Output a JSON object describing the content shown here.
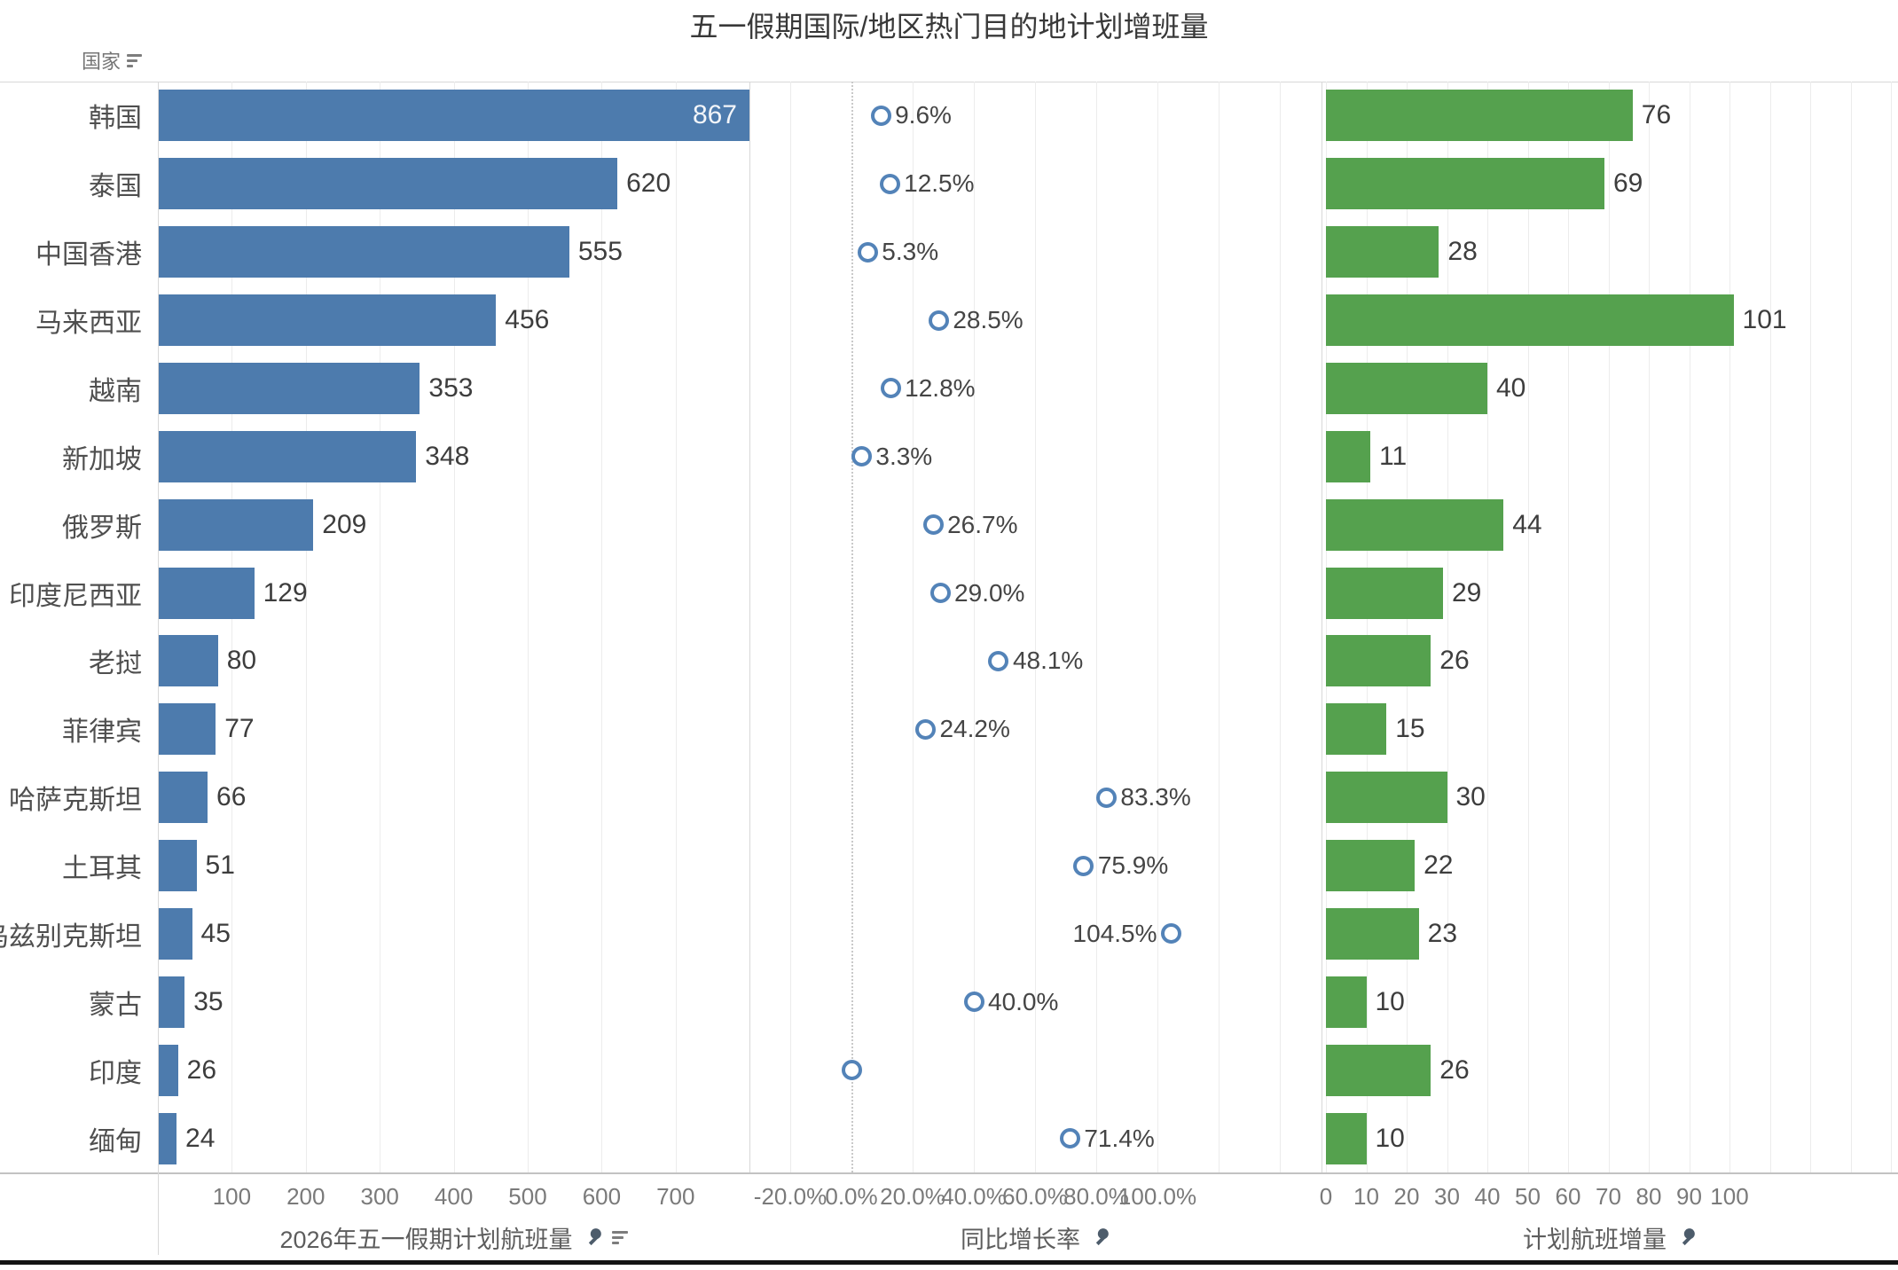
{
  "title": "五一假期国际/地区热门目的地计划增班量",
  "row_header": {
    "label": "国家",
    "sort_icon": "sort-descending-icon"
  },
  "colors": {
    "flights_bar": "#4d7bad",
    "increment_bar": "#55a14e",
    "growth_circle_stroke": "#5383b8",
    "bar_label_inside": "#f2f5f9",
    "gridline": "#ececec",
    "zero_line_dotted": "#c9c9c9",
    "bottom_bar": "#141414"
  },
  "chart_data": {
    "type": "bar",
    "orientation": "horizontal",
    "title": "五一假期国际/地区热门目的地计划增班量",
    "categories": [
      "韩国",
      "泰国",
      "中国香港",
      "马来西亚",
      "越南",
      "新加坡",
      "俄罗斯",
      "印度尼西亚",
      "老挝",
      "菲律宾",
      "哈萨克斯坦",
      "土耳其",
      "乌兹别克斯坦",
      "蒙古",
      "印度",
      "缅甸"
    ],
    "series": [
      {
        "name": "2026年五一假期计划航班量",
        "type": "bar",
        "color": "#4d7bad",
        "values": [
          867,
          620,
          555,
          456,
          353,
          348,
          209,
          129,
          80,
          77,
          66,
          51,
          45,
          35,
          26,
          24
        ]
      },
      {
        "name": "同比增长率",
        "type": "scatter",
        "color": "#5383b8",
        "values": [
          9.6,
          12.5,
          5.3,
          28.5,
          12.8,
          3.3,
          26.7,
          29.0,
          48.1,
          24.2,
          83.3,
          75.9,
          104.5,
          40.0,
          0.0,
          71.4
        ],
        "labels": [
          "9.6%",
          "12.5%",
          "5.3%",
          "28.5%",
          "12.8%",
          "3.3%",
          "26.7%",
          "29.0%",
          "48.1%",
          "24.2%",
          "83.3%",
          "75.9%",
          "104.5%",
          "40.0%",
          "",
          "71.4%"
        ],
        "label_side": [
          "right",
          "right",
          "right",
          "right",
          "right",
          "right",
          "right",
          "right",
          "right",
          "right",
          "right",
          "right",
          "left",
          "right",
          "none",
          "right"
        ]
      },
      {
        "name": "计划航班增量",
        "type": "bar",
        "color": "#55a14e",
        "values": [
          76,
          69,
          28,
          101,
          40,
          11,
          44,
          29,
          26,
          15,
          30,
          22,
          23,
          10,
          26,
          10
        ]
      }
    ],
    "panels": [
      {
        "axis_title": "2026年五一假期计划航班量",
        "icons": [
          "pin-icon",
          "sort-descending-icon"
        ],
        "tick_labels": [
          "100",
          "200",
          "300",
          "400",
          "500",
          "600",
          "700"
        ],
        "tick_values": [
          100,
          200,
          300,
          400,
          500,
          600,
          700
        ],
        "xlim": [
          0,
          800
        ],
        "grid": true,
        "value_label_inside": [
          true,
          false,
          false,
          false,
          false,
          false,
          false,
          false,
          false,
          false,
          false,
          false,
          false,
          false,
          false,
          false
        ]
      },
      {
        "axis_title": "同比增长率",
        "icons": [
          "pin-icon"
        ],
        "tick_labels": [
          "-20.0%",
          "0.0%",
          "20.0%",
          "40.0%",
          "60.0%",
          "80.0%",
          "100.0%"
        ],
        "tick_values": [
          -20,
          0,
          20,
          40,
          60,
          80,
          100
        ],
        "gridline_values": [
          -20,
          0,
          20,
          40,
          60,
          80,
          100,
          120,
          140
        ],
        "xlim": [
          -33,
          153
        ],
        "grid": true,
        "zero_line": "dotted"
      },
      {
        "axis_title": "计划航班增量",
        "icons": [
          "pin-icon"
        ],
        "tick_labels": [
          "0",
          "10",
          "20",
          "30",
          "40",
          "50",
          "60",
          "70",
          "80",
          "90",
          "100"
        ],
        "tick_values": [
          0,
          10,
          20,
          30,
          40,
          50,
          60,
          70,
          80,
          90,
          100
        ],
        "gridline_values": [
          0,
          10,
          20,
          30,
          40,
          50,
          60,
          70,
          80,
          90,
          100,
          110,
          120,
          130,
          140
        ],
        "xlim": [
          -1,
          142
        ],
        "grid": true
      }
    ]
  }
}
